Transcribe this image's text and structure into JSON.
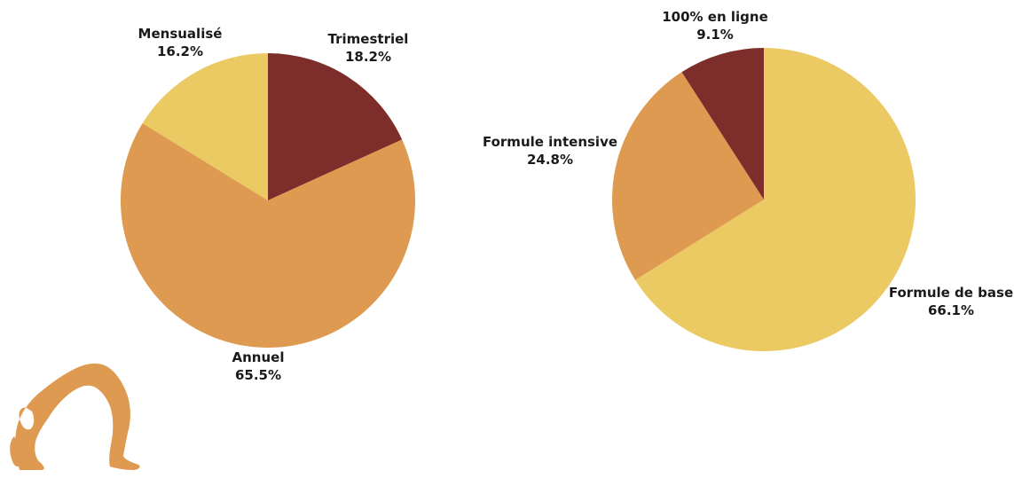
{
  "chart_data": [
    {
      "type": "pie",
      "title": "",
      "slices": [
        {
          "label": "Trimestriel",
          "value": 18.2,
          "value_label": "18.2%",
          "color": "#7d2e2a"
        },
        {
          "label": "Annuel",
          "value": 65.5,
          "value_label": "65.5%",
          "color": "#dd9a50"
        },
        {
          "label": "Mensualisé",
          "value": 16.2,
          "value_label": "16.2%",
          "color": "#ebc963"
        }
      ]
    },
    {
      "type": "pie",
      "title": "",
      "slices": [
        {
          "label": "Formule de base",
          "value": 66.1,
          "value_label": "66.1%",
          "color": "#ebc963"
        },
        {
          "label": "Formule intensive",
          "value": 24.8,
          "value_label": "24.8%",
          "color": "#dd9a50"
        },
        {
          "label": "100% en ligne",
          "value": 9.1,
          "value_label": "9.1%",
          "color": "#7d2e2a"
        }
      ]
    }
  ],
  "decoration": {
    "figure_icon": "yoga-backbend-figure-icon",
    "figure_color": "#dd9a50"
  }
}
